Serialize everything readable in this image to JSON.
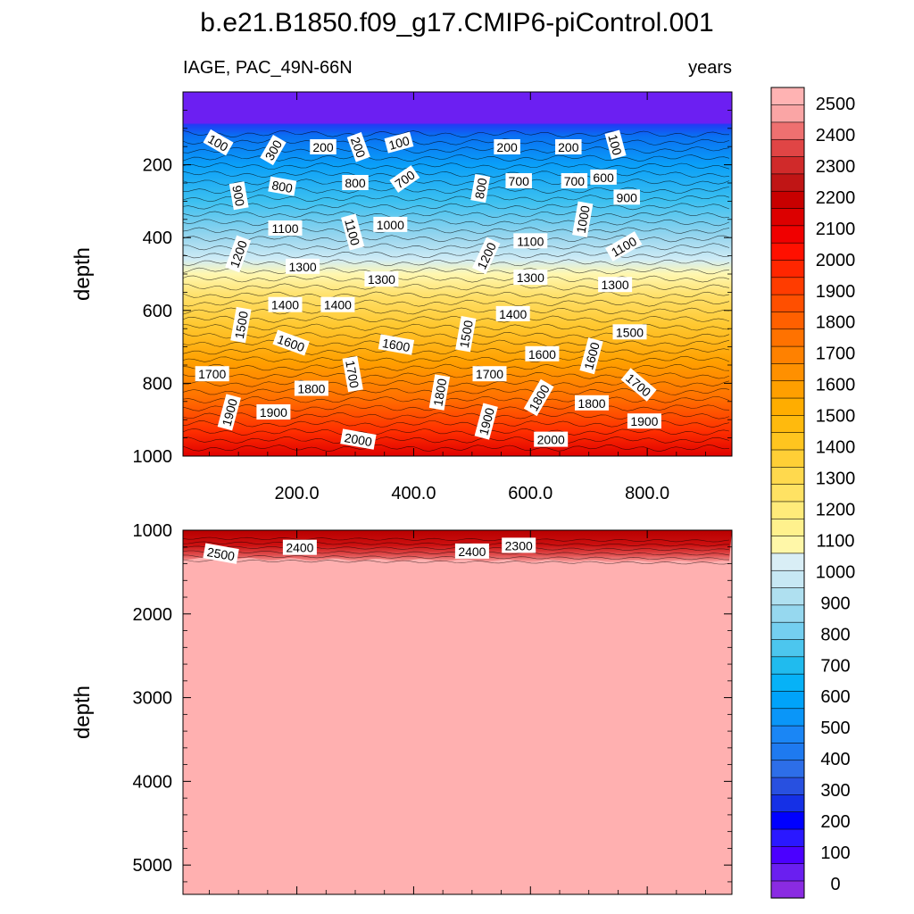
{
  "chart_data": {
    "type": "contour",
    "title": "b.e21.B1850.f09_g17.CMIP6-piControl.001",
    "subtitle_left": "IAGE, PAC_49N-66N",
    "subtitle_right": "years",
    "x_ticks": [
      "200.0",
      "400.0",
      "600.0",
      "800.0"
    ],
    "x_tick_values": [
      200,
      400,
      600,
      800
    ],
    "xlim": [
      5,
      945
    ],
    "panels": [
      {
        "name": "upper",
        "ylabel": "depth",
        "ylim": [
          0,
          1000
        ],
        "y_ticks": [
          "200",
          "400",
          "600",
          "800",
          "1000"
        ],
        "y_tick_values": [
          200,
          400,
          600,
          800,
          1000
        ],
        "contour_labels": [
          {
            "text": "100",
            "x": 65,
            "y": 140,
            "angle": -30
          },
          {
            "text": "300",
            "x": 160,
            "y": 160,
            "angle": 60
          },
          {
            "text": "200",
            "x": 245,
            "y": 152,
            "angle": 0
          },
          {
            "text": "200",
            "x": 305,
            "y": 152,
            "angle": -70
          },
          {
            "text": "100",
            "x": 375,
            "y": 140,
            "angle": 15
          },
          {
            "text": "200",
            "x": 560,
            "y": 152,
            "angle": 0
          },
          {
            "text": "200",
            "x": 665,
            "y": 152,
            "angle": 0
          },
          {
            "text": "100",
            "x": 745,
            "y": 145,
            "angle": -75
          },
          {
            "text": "900",
            "x": 100,
            "y": 285,
            "angle": -80
          },
          {
            "text": "800",
            "x": 175,
            "y": 260,
            "angle": -10
          },
          {
            "text": "800",
            "x": 300,
            "y": 250,
            "angle": 0
          },
          {
            "text": "700",
            "x": 385,
            "y": 240,
            "angle": 35
          },
          {
            "text": "800",
            "x": 515,
            "y": 265,
            "angle": 80
          },
          {
            "text": "700",
            "x": 580,
            "y": 245,
            "angle": 0
          },
          {
            "text": "700",
            "x": 675,
            "y": 245,
            "angle": 0
          },
          {
            "text": "600",
            "x": 725,
            "y": 235,
            "angle": 0
          },
          {
            "text": "900",
            "x": 765,
            "y": 290,
            "angle": 0
          },
          {
            "text": "1100",
            "x": 180,
            "y": 375,
            "angle": 0
          },
          {
            "text": "1100",
            "x": 295,
            "y": 385,
            "angle": -75
          },
          {
            "text": "1000",
            "x": 360,
            "y": 365,
            "angle": 0
          },
          {
            "text": "1000",
            "x": 690,
            "y": 350,
            "angle": 80
          },
          {
            "text": "1100",
            "x": 600,
            "y": 410,
            "angle": 0
          },
          {
            "text": "1100",
            "x": 760,
            "y": 425,
            "angle": 30
          },
          {
            "text": "1200",
            "x": 100,
            "y": 445,
            "angle": 70
          },
          {
            "text": "1200",
            "x": 525,
            "y": 450,
            "angle": 65
          },
          {
            "text": "1300",
            "x": 210,
            "y": 480,
            "angle": 0
          },
          {
            "text": "1300",
            "x": 345,
            "y": 515,
            "angle": 0
          },
          {
            "text": "1300",
            "x": 600,
            "y": 510,
            "angle": 0
          },
          {
            "text": "1300",
            "x": 745,
            "y": 530,
            "angle": 0
          },
          {
            "text": "1400",
            "x": 180,
            "y": 585,
            "angle": 0
          },
          {
            "text": "1400",
            "x": 270,
            "y": 585,
            "angle": 0
          },
          {
            "text": "1400",
            "x": 570,
            "y": 610,
            "angle": 0
          },
          {
            "text": "1500",
            "x": 105,
            "y": 640,
            "angle": 80
          },
          {
            "text": "1500",
            "x": 490,
            "y": 665,
            "angle": 80
          },
          {
            "text": "1500",
            "x": 770,
            "y": 660,
            "angle": 0
          },
          {
            "text": "1600",
            "x": 190,
            "y": 690,
            "angle": -20
          },
          {
            "text": "1600",
            "x": 370,
            "y": 695,
            "angle": -10
          },
          {
            "text": "1600",
            "x": 620,
            "y": 720,
            "angle": 0
          },
          {
            "text": "1600",
            "x": 705,
            "y": 725,
            "angle": 75
          },
          {
            "text": "1700",
            "x": 55,
            "y": 775,
            "angle": 0
          },
          {
            "text": "1700",
            "x": 295,
            "y": 775,
            "angle": -80
          },
          {
            "text": "1700",
            "x": 530,
            "y": 775,
            "angle": 0
          },
          {
            "text": "1700",
            "x": 785,
            "y": 805,
            "angle": -40
          },
          {
            "text": "1800",
            "x": 225,
            "y": 815,
            "angle": 0
          },
          {
            "text": "1800",
            "x": 445,
            "y": 825,
            "angle": 80
          },
          {
            "text": "1800",
            "x": 615,
            "y": 840,
            "angle": 60
          },
          {
            "text": "1800",
            "x": 705,
            "y": 855,
            "angle": 0
          },
          {
            "text": "1900",
            "x": 85,
            "y": 880,
            "angle": 75
          },
          {
            "text": "1900",
            "x": 160,
            "y": 880,
            "angle": 0
          },
          {
            "text": "1900",
            "x": 525,
            "y": 905,
            "angle": 75
          },
          {
            "text": "1900",
            "x": 795,
            "y": 905,
            "angle": 0
          },
          {
            "text": "2000",
            "x": 305,
            "y": 955,
            "angle": -10
          },
          {
            "text": "2000",
            "x": 635,
            "y": 955,
            "angle": 0
          }
        ]
      },
      {
        "name": "lower",
        "ylabel": "depth",
        "ylim": [
          1000,
          5350
        ],
        "y_ticks": [
          "1000",
          "2000",
          "3000",
          "4000",
          "5000"
        ],
        "y_tick_values": [
          1000,
          2000,
          3000,
          4000,
          5000
        ],
        "contour_labels": [
          {
            "text": "2500",
            "x": 70,
            "y": 1285,
            "angle": -10
          },
          {
            "text": "2400",
            "x": 205,
            "y": 1210,
            "angle": 0
          },
          {
            "text": "2400",
            "x": 500,
            "y": 1255,
            "angle": 0
          },
          {
            "text": "2300",
            "x": 580,
            "y": 1185,
            "angle": 0
          }
        ]
      }
    ],
    "colorbar": {
      "labels": [
        "0",
        "100",
        "200",
        "300",
        "400",
        "500",
        "600",
        "700",
        "800",
        "900",
        "1000",
        "1100",
        "1200",
        "1300",
        "1400",
        "1500",
        "1600",
        "1700",
        "1800",
        "1900",
        "2000",
        "2100",
        "2200",
        "2300",
        "2400",
        "2500"
      ],
      "colors": [
        "#8a2be2",
        "#6a1ff0",
        "#4b00ff",
        "#2a18ff",
        "#0000ff",
        "#1530e6",
        "#2850e0",
        "#2d6ee8",
        "#1e7af0",
        "#1a86f5",
        "#0a96f8",
        "#00a3fa",
        "#06b2f7",
        "#20bbee",
        "#4cc6ee",
        "#74cff0",
        "#96d8ef",
        "#afe0f0",
        "#c7e8f4",
        "#d9eef6",
        "#fff7a8",
        "#fff18d",
        "#ffeb7a",
        "#ffe263",
        "#ffd94d",
        "#ffcf36",
        "#ffc51f",
        "#ffba0d",
        "#ffad00",
        "#ff9f00",
        "#ff9000",
        "#ff8100",
        "#ff7200",
        "#ff6000",
        "#ff4f00",
        "#ff3c00",
        "#ff2600",
        "#ff1000",
        "#f00000",
        "#dc0000",
        "#c80000",
        "#c01515",
        "#d02a2a",
        "#e04545",
        "#ee7070",
        "#faa5a5",
        "#ffb3b3"
      ]
    }
  }
}
